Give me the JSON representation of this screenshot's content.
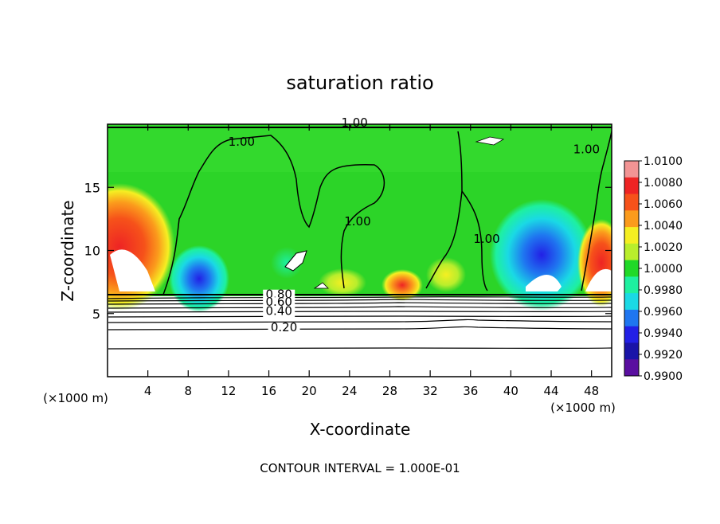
{
  "chart_data": {
    "type": "heatmap",
    "title": "saturation ratio",
    "xlabel": "X-coordinate",
    "ylabel": "Z-coordinate",
    "x_unit_label": "(×1000 m)",
    "y_unit_label": "(×1000 m)",
    "footer": "CONTOUR INTERVAL = 1.000E-01",
    "xlim": [
      0,
      50
    ],
    "ylim": [
      0,
      20
    ],
    "x_ticks": [
      4,
      8,
      12,
      16,
      20,
      24,
      28,
      32,
      36,
      40,
      44,
      48
    ],
    "y_ticks": [
      5,
      10,
      15
    ],
    "colorbar": {
      "min": 0.99,
      "max": 1.01,
      "labels": [
        "1.0100",
        "1.0080",
        "1.0060",
        "1.0040",
        "1.0020",
        "1.0000",
        "0.9980",
        "0.9960",
        "0.9940",
        "0.9920",
        "0.9900"
      ],
      "colors": [
        "#f29494",
        "#ee2424",
        "#f6521a",
        "#fb9b1c",
        "#f5ef22",
        "#b9ee2c",
        "#20d928",
        "#1ef0a0",
        "#1ad9e5",
        "#1f76f0",
        "#2220e6",
        "#1a14a8",
        "#5a0fa0"
      ]
    },
    "contour_labels": [
      {
        "value": "1.00",
        "x": 24.5,
        "z": 19.8
      },
      {
        "value": "1.00",
        "x": 13.3,
        "z": 18.3
      },
      {
        "value": "1.00",
        "x": 47.5,
        "z": 17.7
      },
      {
        "value": "1.00",
        "x": 24.8,
        "z": 12.0
      },
      {
        "value": "1.00",
        "x": 37.6,
        "z": 10.6
      },
      {
        "value": "0.80",
        "x": 17.0,
        "z": 6.2
      },
      {
        "value": "0.60",
        "x": 17.0,
        "z": 5.6
      },
      {
        "value": "0.40",
        "x": 17.0,
        "z": 4.9
      },
      {
        "value": "0.20",
        "x": 17.5,
        "z": 3.6
      }
    ],
    "contour_levels_below_cloud": [
      0.9,
      0.8,
      0.7,
      0.6,
      0.5,
      0.4,
      0.3,
      0.2,
      0.1
    ],
    "grid": false
  }
}
